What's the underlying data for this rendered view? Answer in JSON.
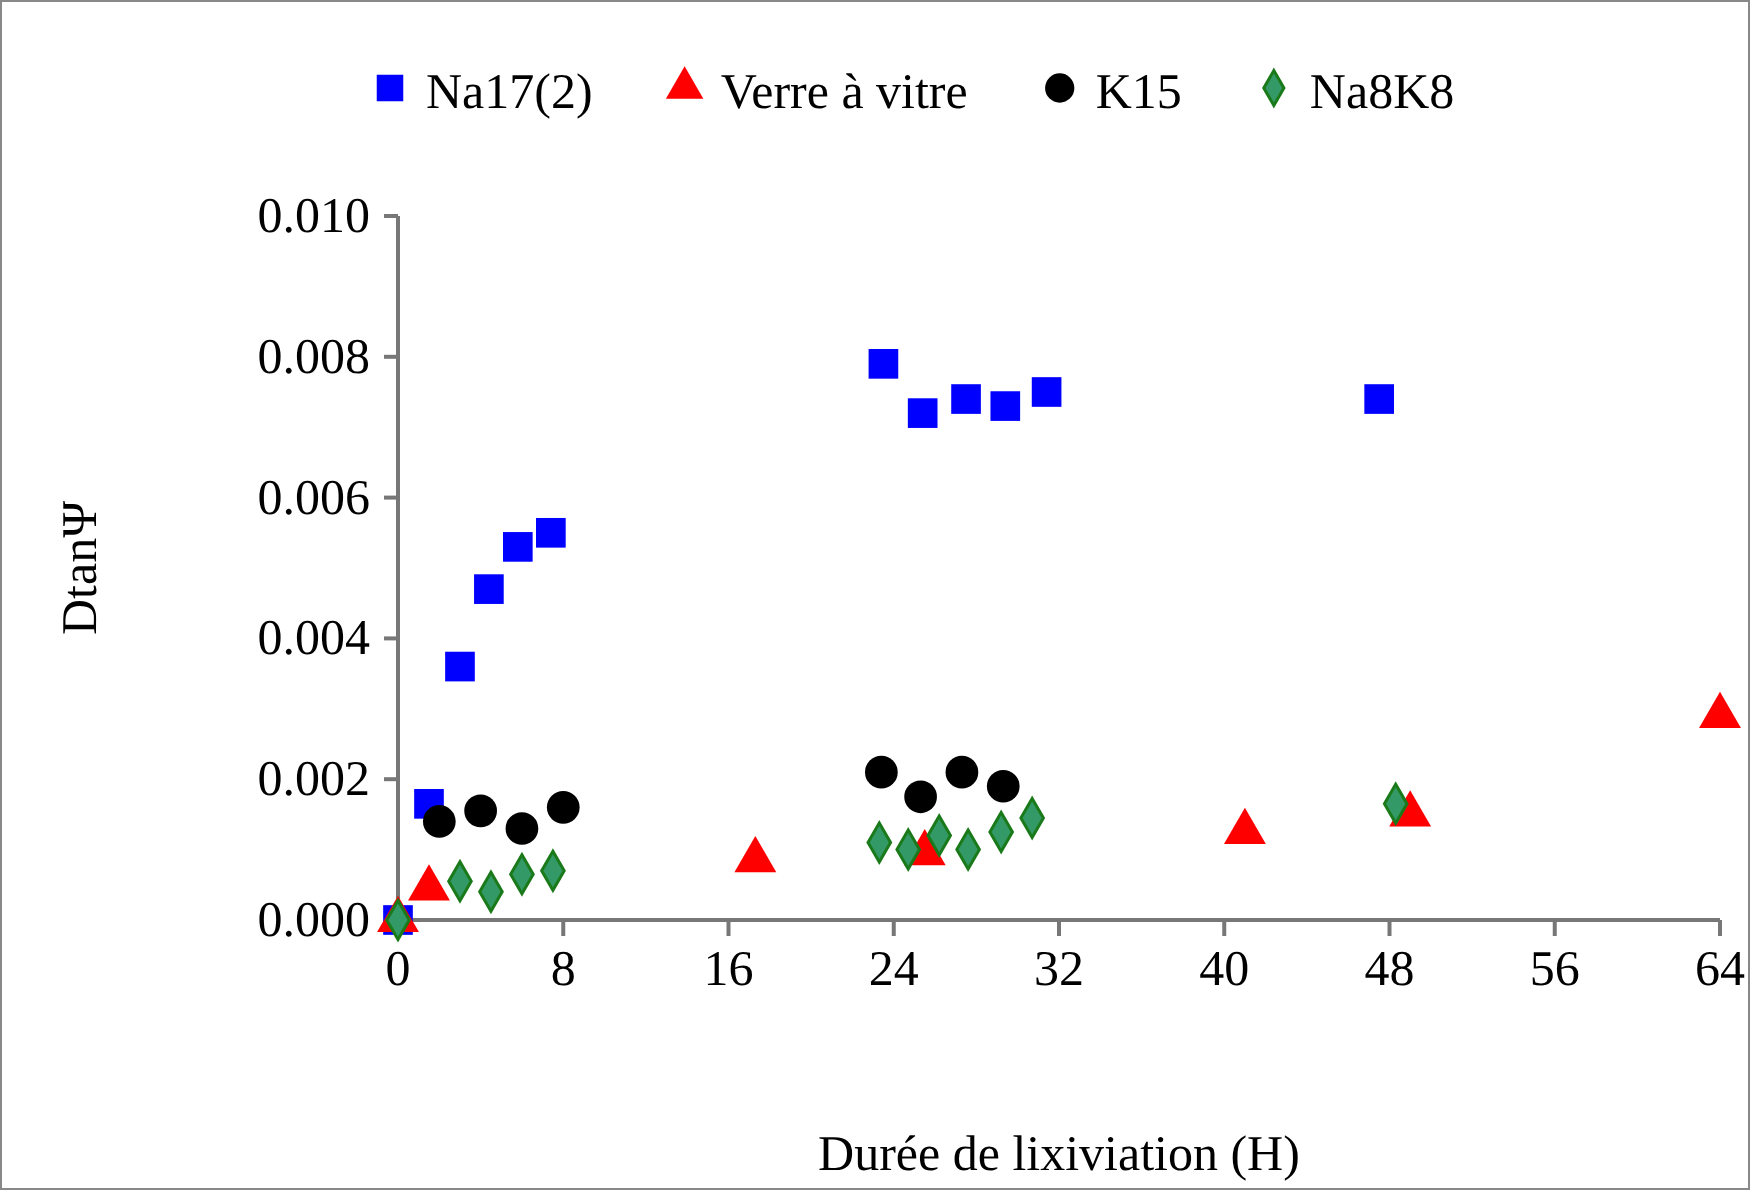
{
  "chart_data": {
    "type": "scatter",
    "xlabel": "Durée de lixiviation (H)",
    "ylabel": "DtanΨ",
    "xlim": [
      0,
      64
    ],
    "xticks": [
      0,
      8,
      16,
      24,
      32,
      40,
      48,
      56,
      64
    ],
    "ylim": [
      0,
      0.01
    ],
    "yticks": [
      {
        "value": 0,
        "label": "0.000"
      },
      {
        "value": 0.002,
        "label": "0.002"
      },
      {
        "value": 0.004,
        "label": "0.004"
      },
      {
        "value": 0.006,
        "label": "0.006"
      },
      {
        "value": 0.008,
        "label": "0.008"
      },
      {
        "value": 0.01,
        "label": "0.010"
      }
    ],
    "grid": false,
    "legend": "top",
    "series": [
      {
        "name": "Na17(2)",
        "color": "#0000ff",
        "marker": "square",
        "x": [
          0,
          1.5,
          3,
          4.4,
          5.8,
          7.4,
          23.5,
          25.4,
          27.5,
          29.4,
          31.4,
          47.5
        ],
        "values": [
          0,
          0.00165,
          0.0036,
          0.0047,
          0.0053,
          0.0055,
          0.0079,
          0.0072,
          0.0074,
          0.0073,
          0.0075,
          0.0074
        ]
      },
      {
        "name": "Verre à vitre",
        "color": "#ff0000",
        "marker": "triangle",
        "x": [
          0,
          1.5,
          17.3,
          25.5,
          41,
          49,
          64
        ],
        "values": [
          0,
          0.00045,
          0.00085,
          0.00095,
          0.00125,
          0.0015,
          0.0029
        ]
      },
      {
        "name": "K15",
        "color": "#000000",
        "marker": "circle",
        "x": [
          2,
          4,
          6,
          8,
          23.4,
          25.3,
          27.3,
          29.3
        ],
        "values": [
          0.0014,
          0.00155,
          0.0013,
          0.0016,
          0.0021,
          0.00175,
          0.0021,
          0.0019
        ]
      },
      {
        "name": "Na8K8",
        "color": "#339966",
        "marker": "diamond",
        "x": [
          0,
          3,
          4.5,
          6,
          7.5,
          23.3,
          24.7,
          26.2,
          27.6,
          29.2,
          30.7,
          48.3
        ],
        "values": [
          0,
          0.00055,
          0.0004,
          0.00065,
          0.0007,
          0.0011,
          0.001,
          0.0012,
          0.001,
          0.00125,
          0.00145,
          0.00165
        ]
      }
    ]
  }
}
